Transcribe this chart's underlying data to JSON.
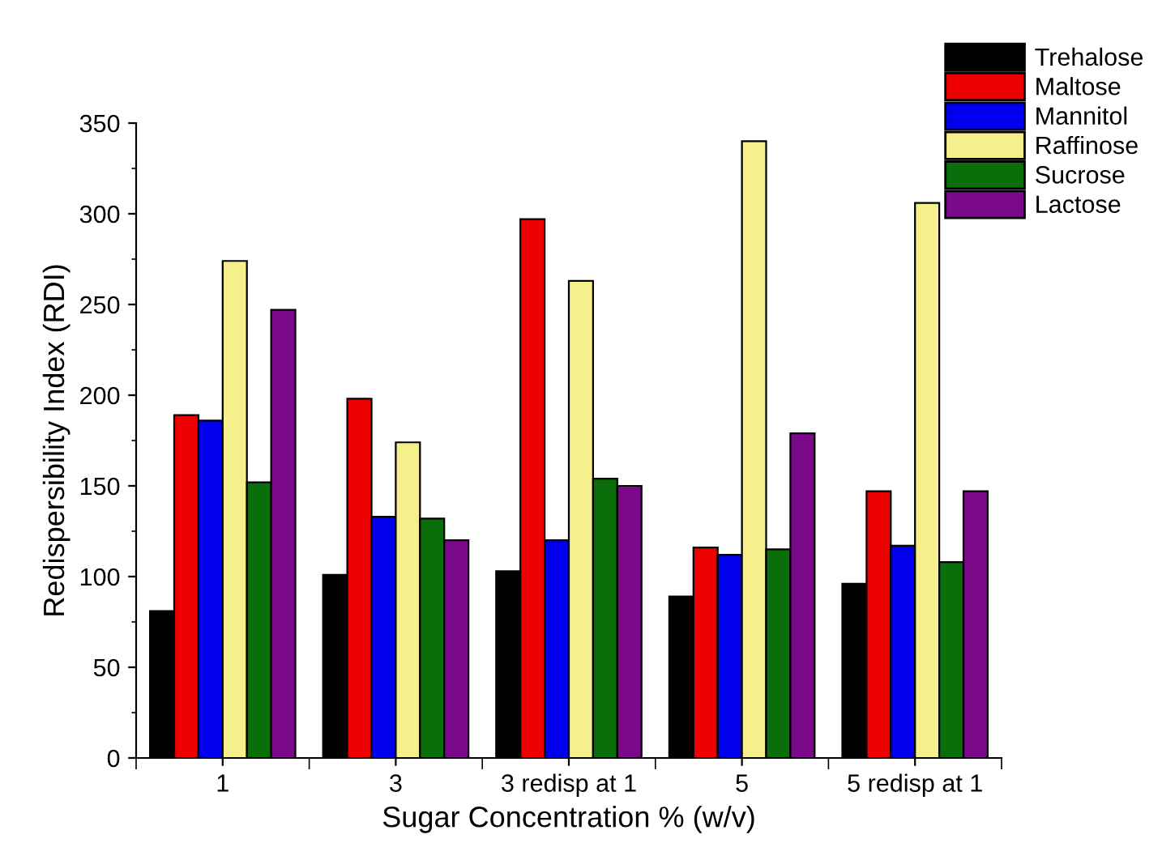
{
  "chart_data": {
    "type": "bar",
    "xlabel": "Sugar Concentration % (w/v)",
    "ylabel": "Redispersibility Index (RDI)",
    "categories": [
      "1",
      "3",
      "3 redisp at 1",
      "5",
      "5 redisp at 1"
    ],
    "series": [
      {
        "name": "Trehalose",
        "color": "#000000",
        "values": [
          81,
          101,
          103,
          89,
          96
        ]
      },
      {
        "name": "Maltose",
        "color": "#ee0000",
        "values": [
          189,
          198,
          297,
          116,
          147
        ]
      },
      {
        "name": "Mannitol",
        "color": "#0000ee",
        "values": [
          186,
          133,
          120,
          112,
          117
        ]
      },
      {
        "name": "Raffinose",
        "color": "#f5f08c",
        "values": [
          274,
          174,
          263,
          340,
          306
        ]
      },
      {
        "name": "Sucrose",
        "color": "#0a6e0a",
        "values": [
          152,
          132,
          154,
          115,
          108
        ]
      },
      {
        "name": "Lactose",
        "color": "#7a0a8a",
        "values": [
          247,
          120,
          150,
          179,
          147
        ]
      }
    ],
    "ylim": [
      0,
      350
    ],
    "yticks": [
      0,
      50,
      100,
      150,
      200,
      250,
      300,
      350
    ],
    "grid": false,
    "legend": "top right"
  }
}
